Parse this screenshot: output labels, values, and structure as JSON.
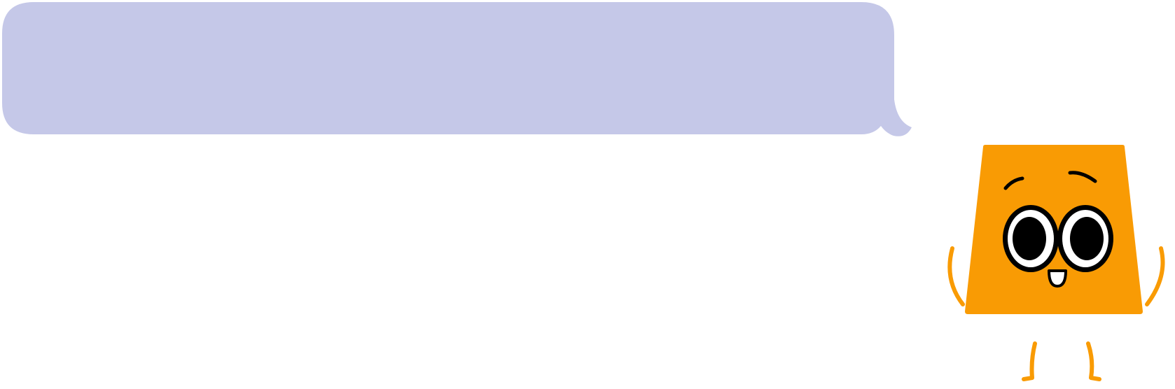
{
  "speech_bubble": {
    "text": "",
    "fill_color": "#c5c8e8"
  },
  "character": {
    "shape": "trapezoid",
    "body_color": "#f99b04",
    "outline_color": "#000000",
    "eye_white_color": "#ffffff"
  }
}
